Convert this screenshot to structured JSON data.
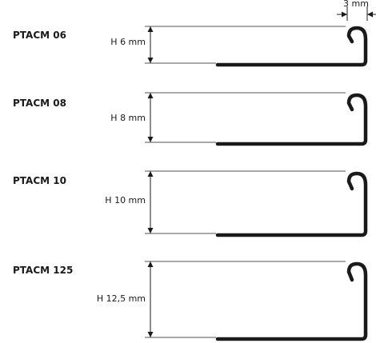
{
  "top_dimension": "3 mm",
  "profiles": [
    {
      "code": "PTACM 06",
      "height_label": "H 6 mm"
    },
    {
      "code": "PTACM 08",
      "height_label": "H 8 mm"
    },
    {
      "code": "PTACM 10",
      "height_label": "H 10 mm"
    },
    {
      "code": "PTACM 125",
      "height_label": "H 12,5 mm"
    }
  ]
}
